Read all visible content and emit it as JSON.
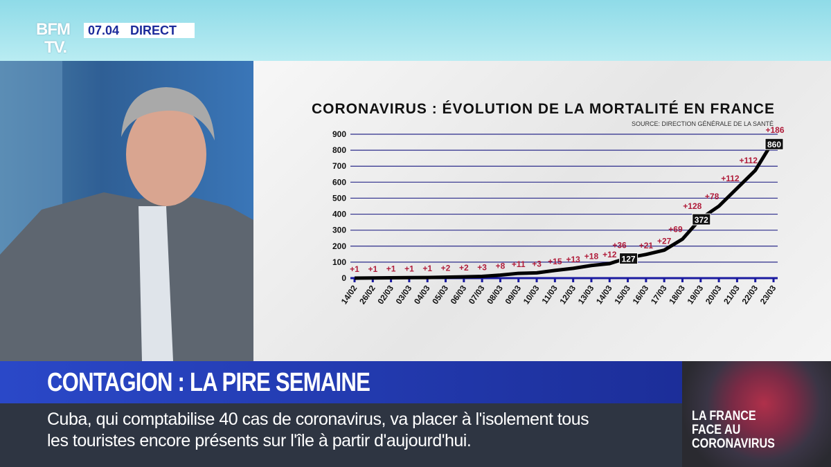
{
  "header": {
    "logo": "BFM TV.",
    "logo_line1": "BFM",
    "logo_line2": "TV.",
    "time": "07.04",
    "live": "DIRECT"
  },
  "headline": "CONTAGION : LA PIRE SEMAINE",
  "ticker": {
    "line1": "Cuba, qui comptabilise 40 cas de coronavirus, va placer à l'isolement tous",
    "line2": "les touristes encore présents sur l'île à partir d'aujourd'hui."
  },
  "promo": {
    "line1": "LA FRANCE",
    "line2": "FACE AU",
    "line3": "CORONAVIRUS"
  },
  "colors": {
    "line": "#000000",
    "axis": "#1a1aa0",
    "grid": "#2a2a8a",
    "delta": "#b01c3a"
  },
  "chart_data": {
    "type": "line",
    "title": "CORONAVIRUS : ÉVOLUTION DE LA MORTALITÉ EN FRANCE",
    "subtitle": "SOURCE: DIRECTION GÉNÉRALE DE LA SANTÉ",
    "xlabel": "",
    "ylabel": "",
    "ylim": [
      0,
      900
    ],
    "yticks": [
      "0",
      "100",
      "200",
      "300",
      "400",
      "500",
      "600",
      "700",
      "800",
      "900"
    ],
    "categories": [
      "14/02",
      "26/02",
      "02/03",
      "03/03",
      "04/03",
      "05/03",
      "06/03",
      "07/03",
      "08/03",
      "09/03",
      "10/03",
      "11/03",
      "12/03",
      "13/03",
      "14/03",
      "15/03",
      "16/03",
      "17/03",
      "18/03",
      "19/03",
      "20/03",
      "21/03",
      "22/03",
      "23/03"
    ],
    "values": [
      0,
      1,
      2,
      3,
      4,
      6,
      8,
      11,
      19,
      30,
      33,
      48,
      61,
      79,
      91,
      127,
      148,
      175,
      244,
      372,
      450,
      562,
      674,
      860
    ],
    "deltas": [
      "+1",
      "+1",
      "+1",
      "+1",
      "+1",
      "+2",
      "+2",
      "+3",
      "+8",
      "+11",
      "+3",
      "+15",
      "+13",
      "+18",
      "+12",
      "+36",
      "+21",
      "+27",
      "+69",
      "+128",
      "+78",
      "+112",
      "+112",
      "+186"
    ],
    "boxed_labels": [
      {
        "index": 15,
        "label": "127"
      },
      {
        "index": 19,
        "label": "372"
      },
      {
        "index": 23,
        "label": "860"
      }
    ],
    "grid": true
  }
}
